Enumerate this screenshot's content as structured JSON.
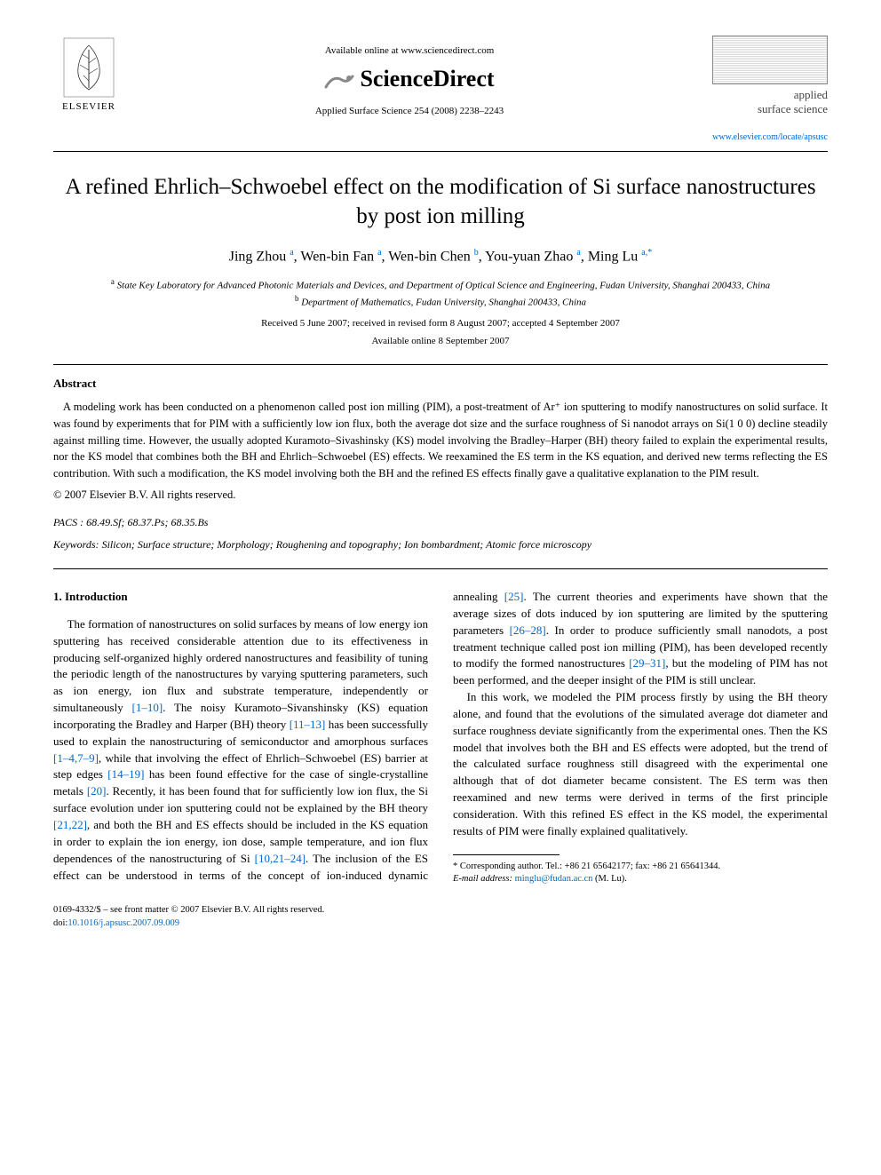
{
  "header": {
    "available_online": "Available online at www.sciencedirect.com",
    "brand": "ScienceDirect",
    "journal_ref": "Applied Surface Science 254 (2008) 2238–2243",
    "elsevier": "ELSEVIER",
    "journal_small_1": "applied",
    "journal_small_2": "surface science",
    "journal_url": "www.elsevier.com/locate/apsusc"
  },
  "title": "A refined Ehrlich–Schwoebel effect on the modification of Si surface nanostructures by post ion milling",
  "authors_html": "Jing Zhou <sup>a</sup>, Wen-bin Fan <sup>a</sup>, Wen-bin Chen <sup>b</sup>, You-yuan Zhao <sup>a</sup>, Ming Lu <sup>a,*</sup>",
  "affiliations": {
    "a": "State Key Laboratory for Advanced Photonic Materials and Devices, and Department of Optical Science and Engineering, Fudan University, Shanghai 200433, China",
    "b": "Department of Mathematics, Fudan University, Shanghai 200433, China"
  },
  "dates": {
    "received": "Received 5 June 2007; received in revised form 8 August 2007; accepted 4 September 2007",
    "online": "Available online 8 September 2007"
  },
  "abstract": {
    "heading": "Abstract",
    "body": "A modeling work has been conducted on a phenomenon called post ion milling (PIM), a post-treatment of Ar⁺ ion sputtering to modify nanostructures on solid surface. It was found by experiments that for PIM with a sufficiently low ion flux, both the average dot size and the surface roughness of Si nanodot arrays on Si(1 0 0) decline steadily against milling time. However, the usually adopted Kuramoto–Sivashinsky (KS) model involving the Bradley–Harper (BH) theory failed to explain the experimental results, nor the KS model that combines both the BH and Ehrlich–Schwoebel (ES) effects. We reexamined the ES term in the KS equation, and derived new terms reflecting the ES contribution. With such a modification, the KS model involving both the BH and the refined ES effects finally gave a qualitative explanation to the PIM result.",
    "copyright": "© 2007 Elsevier B.V. All rights reserved."
  },
  "pacs": {
    "label": "PACS :",
    "value": "68.49.Sf; 68.37.Ps; 68.35.Bs"
  },
  "keywords": {
    "label": "Keywords:",
    "value": "Silicon; Surface structure; Morphology; Roughening and topography; Ion bombardment; Atomic force microscopy"
  },
  "intro": {
    "heading": "1. Introduction",
    "p1_a": "The formation of nanostructures on solid surfaces by means of low energy ion sputtering has received considerable attention due to its effectiveness in producing self-organized highly ordered nanostructures and feasibility of tuning the periodic length of the nanostructures by varying sputtering parameters, such as ion energy, ion flux and substrate temperature, independently or simultaneously ",
    "p1_r1": "[1–10]",
    "p1_b": ". The noisy Kuramoto–Sivanshinsky (KS) equation incorporating the Bradley and Harper (BH) theory ",
    "p1_r2": "[11–13]",
    "p1_c": " has been successfully used to explain the nanostructuring of semiconductor and amorphous surfaces ",
    "p1_r3": "[1–4,7–9]",
    "p1_d": ", while that involving the effect of Ehrlich–Schwoebel (ES) barrier at step edges ",
    "p1_r4": "[14–19]",
    "p1_e": " has been found effective for the case of single-crystalline metals ",
    "p1_r5": "[20]",
    "p1_f": ". Recently, it has been found that for sufficiently low ion flux, the Si surface evolution under ion sputtering could not be explained by the BH theory ",
    "p1_r6": "[21,22]",
    "p1_g": ", and both the BH and ES effects should be included in the KS equation in order to explain the ion energy, ion dose, sample temperature, and ion flux dependences of the nanostructuring of Si ",
    "p1_r7": "[10,21–24]",
    "p1_h": ". The inclusion of the ES effect can be understood in terms of the concept of ion-induced dynamic annealing ",
    "p1_r8": "[25]",
    "p1_i": ". The current theories and experiments have shown that the average sizes of dots induced by ion sputtering are limited by the sputtering parameters ",
    "p1_r9": "[26–28]",
    "p1_j": ". In order to produce sufficiently small nanodots, a post treatment technique called post ion milling (PIM), has been developed recently to modify the formed nanostructures ",
    "p1_r10": "[29–31]",
    "p1_k": ", but the modeling of PIM has not been performed, and the deeper insight of the PIM is still unclear.",
    "p2": "In this work, we modeled the PIM process firstly by using the BH theory alone, and found that the evolutions of the simulated average dot diameter and surface roughness deviate significantly from the experimental ones. Then the KS model that involves both the BH and ES effects were adopted, but the trend of the calculated surface roughness still disagreed with the experimental one although that of dot diameter became consistent. The ES term was then reexamined and new terms were derived in terms of the first principle consideration. With this refined ES effect in the KS model, the experimental results of PIM were finally explained qualitatively."
  },
  "footnote": {
    "corr": "* Corresponding author. Tel.: +86 21 65642177; fax: +86 21 65641344.",
    "email_label": "E-mail address:",
    "email": "minglu@fudan.ac.cn",
    "email_who": "(M. Lu)."
  },
  "footer": {
    "issn": "0169-4332/$ – see front matter © 2007 Elsevier B.V. All rights reserved.",
    "doi_label": "doi:",
    "doi": "10.1016/j.apsusc.2007.09.009"
  }
}
